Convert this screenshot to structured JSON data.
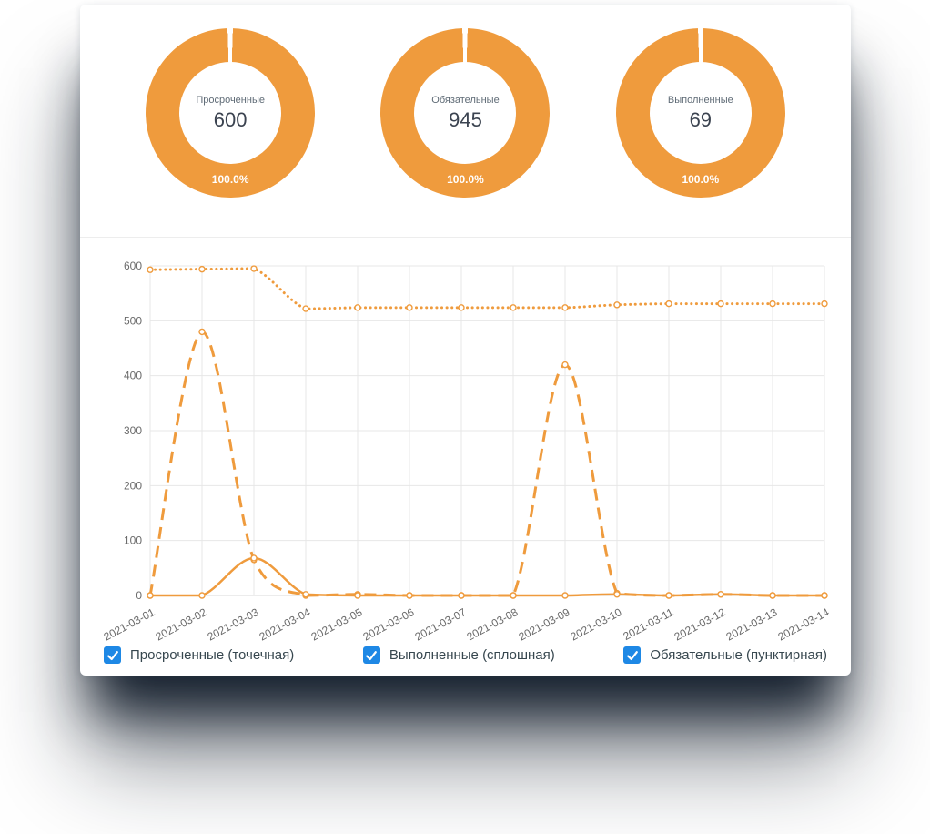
{
  "colors": {
    "orange": "#EF9B3D",
    "checkbox_blue": "#1E88E5",
    "grid": "#E7E7E7",
    "axis_text": "#6B6B6B"
  },
  "donuts": [
    {
      "name": "overdue",
      "label": "Просроченные",
      "value": "600",
      "percent": "100.0%"
    },
    {
      "name": "mandatory",
      "label": "Обязательные",
      "value": "945",
      "percent": "100.0%"
    },
    {
      "name": "completed",
      "label": "Выполненные",
      "value": "69",
      "percent": "100.0%"
    }
  ],
  "legend": [
    {
      "label": "Просроченные (точечная)",
      "checked": true
    },
    {
      "label": "Выполненные (сплошная)",
      "checked": true
    },
    {
      "label": "Обязательные (пунктирная)",
      "checked": true
    }
  ],
  "chart_data": {
    "type": "line",
    "x": [
      "2021-03-01",
      "2021-03-02",
      "2021-03-03",
      "2021-03-04",
      "2021-03-05",
      "2021-03-06",
      "2021-03-07",
      "2021-03-08",
      "2021-03-09",
      "2021-03-10",
      "2021-03-11",
      "2021-03-12",
      "2021-03-13",
      "2021-03-14"
    ],
    "series": [
      {
        "name": "Просроченные",
        "style": "dotted",
        "values": [
          593,
          594,
          595,
          522,
          524,
          524,
          524,
          524,
          524,
          529,
          531,
          531,
          531,
          531
        ]
      },
      {
        "name": "Выполненные",
        "style": "solid",
        "values": [
          0,
          0,
          68,
          2,
          0,
          0,
          0,
          0,
          0,
          2,
          0,
          2,
          0,
          0
        ]
      },
      {
        "name": "Обязательные",
        "style": "dashed",
        "values": [
          0,
          480,
          65,
          0,
          2,
          0,
          0,
          0,
          420,
          4,
          0,
          2,
          0,
          0
        ]
      }
    ],
    "ylim": [
      0,
      600
    ],
    "yticks": [
      0,
      100,
      200,
      300,
      400,
      500,
      600
    ],
    "grid": true,
    "markers": true,
    "legend_position": "bottom"
  }
}
